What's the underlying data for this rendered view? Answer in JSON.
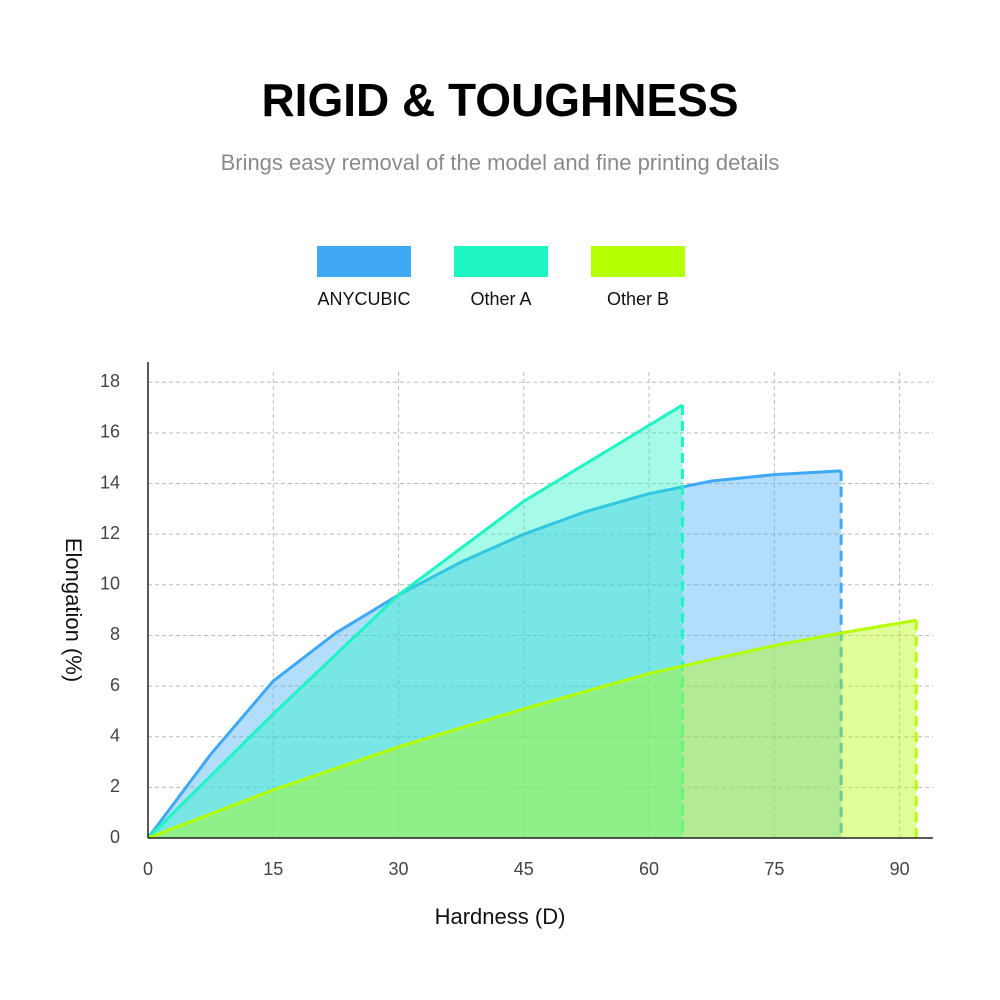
{
  "chart_data": {
    "type": "area",
    "title": "RIGID & TOUGHNESS",
    "subtitle": "Brings easy removal of the model and fine printing details",
    "x_label": "Hardness (D)",
    "y_label": "Elongation (%)",
    "xlim": [
      0,
      94
    ],
    "ylim": [
      0,
      18.8
    ],
    "xticks": [
      0,
      15,
      30,
      45,
      60,
      75,
      90
    ],
    "yticks": [
      0,
      2,
      4,
      6,
      8,
      10,
      12,
      14,
      16,
      18
    ],
    "grid": true,
    "series": [
      {
        "name": "ANYCUBIC",
        "color": "#3fa9f5",
        "x": [
          0,
          7.5,
          15,
          22.5,
          30,
          37.5,
          45,
          52.5,
          60,
          67.5,
          75,
          83
        ],
        "values": [
          0,
          3.3,
          6.2,
          8.1,
          9.6,
          10.9,
          12.0,
          12.9,
          13.6,
          14.1,
          14.35,
          14.5
        ]
      },
      {
        "name": "Other A",
        "color": "#1df5c4",
        "x": [
          0,
          15,
          30,
          45,
          60,
          64
        ],
        "values": [
          0,
          4.9,
          9.6,
          13.3,
          16.3,
          17.1
        ]
      },
      {
        "name": "Other B",
        "color": "#b4ff00",
        "x": [
          0,
          15,
          30,
          45,
          60,
          75,
          83,
          92
        ],
        "values": [
          0,
          1.9,
          3.6,
          5.1,
          6.5,
          7.6,
          8.1,
          8.6
        ]
      }
    ]
  }
}
